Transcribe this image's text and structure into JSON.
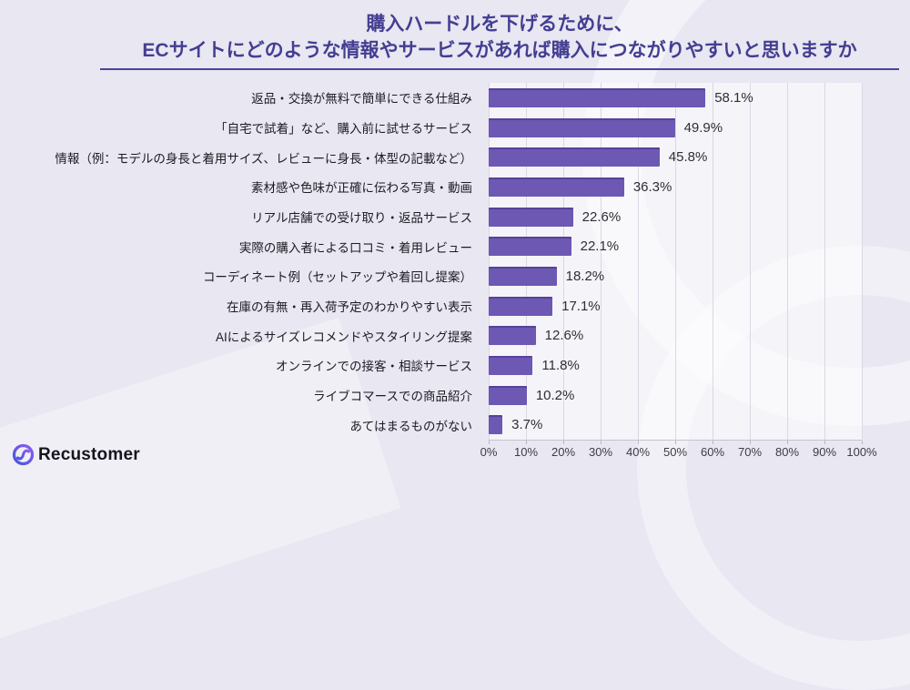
{
  "header": {
    "title_line1": "購入ハードルを下げるために、",
    "title_line2": "ECサイトにどのような情報やサービスがあれば購入につながりやすいと思いますか"
  },
  "chart_data": {
    "type": "bar",
    "orientation": "horizontal",
    "title": "購入ハードルを下げるために、ECサイトにどのような情報やサービスがあれば購入につながりやすいと思いますか",
    "categories": [
      "返品・交換が無料で簡単にできる仕組み",
      "「自宅で試着」など、購入前に試せるサービス",
      "情報（例：モデルの身長と着用サイズ、レビューに身長・体型の記載など）",
      "素材感や色味が正確に伝わる写真・動画",
      "リアル店舗での受け取り・返品サービス",
      "実際の購入者による口コミ・着用レビュー",
      "コーディネート例（セットアップや着回し提案）",
      "在庫の有無・再入荷予定のわかりやすい表示",
      "AIによるサイズレコメンドやスタイリング提案",
      "オンラインでの接客・相談サービス",
      "ライブコマースでの商品紹介",
      "あてはまるものがない"
    ],
    "values": [
      58.1,
      49.9,
      45.8,
      36.3,
      22.6,
      22.1,
      18.2,
      17.1,
      12.6,
      11.8,
      10.2,
      3.7
    ],
    "value_labels": [
      "58.1%",
      "49.9%",
      "45.8%",
      "36.3%",
      "22.6%",
      "22.1%",
      "18.2%",
      "17.1%",
      "12.6%",
      "11.8%",
      "10.2%",
      "3.7%"
    ],
    "xlabel": "",
    "ylabel": "",
    "xlim": [
      0,
      100
    ],
    "x_ticks": [
      "0%",
      "10%",
      "20%",
      "30%",
      "40%",
      "50%",
      "60%",
      "70%",
      "80%",
      "90%",
      "100%"
    ],
    "grid": true,
    "legend": false
  },
  "footer": {
    "brand": "Recustomer"
  },
  "colors": {
    "background": "#e8e7f2",
    "plot_background": "rgba(255,255,255,0.55)",
    "bar": "#6d58b4",
    "title": "#443e91",
    "gridline": "#d9d8e4",
    "axis_label": "#3c3c45",
    "category_label": "#1c1c22",
    "value_label": "#2e2e34",
    "logo_gradient_start": "#4656dd",
    "logo_gradient_end": "#8b5cf0"
  }
}
